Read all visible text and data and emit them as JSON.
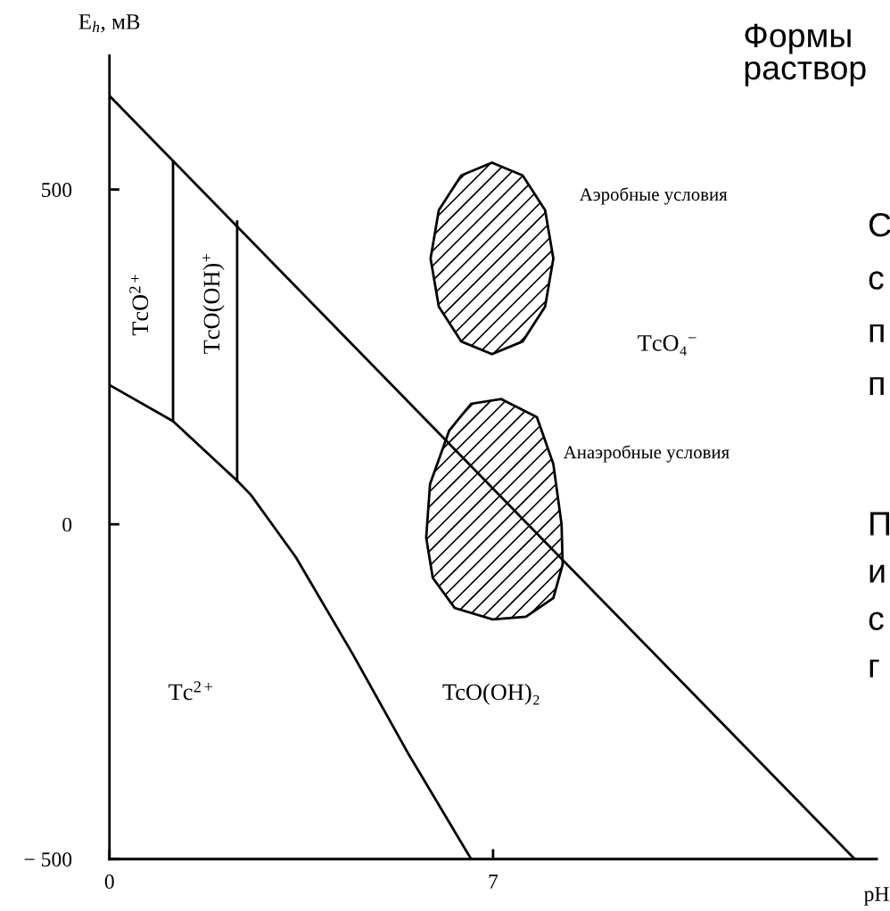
{
  "chart_data": {
    "type": "line",
    "title": "Формы\nраствор",
    "xlabel": "pH",
    "ylabel": "E$_{h}$, мВ",
    "xlim": [
      0,
      14
    ],
    "xticks": [
      0,
      7
    ],
    "ylim": [
      -500,
      700
    ],
    "yticks": [
      {
        "value": -500,
        "label": "− 500"
      },
      0,
      500
    ],
    "grid": false,
    "marker": "none",
    "line_style": "solid",
    "series": [
      {
        "color": "#000000",
        "x": [
          0,
          13.6
        ],
        "values": [
          640,
          -500
        ]
      },
      {
        "color": "#000000",
        "x": [
          0,
          1.16,
          2.33,
          2.58,
          3.4,
          4.44,
          5.47,
          6.6
        ],
        "values": [
          208,
          154,
          65,
          44,
          -49,
          -194,
          -345,
          -500
        ]
      },
      {
        "color": "#000000",
        "x": [
          1.16,
          1.16
        ],
        "values": [
          542,
          154
        ]
      },
      {
        "color": "#000000",
        "x": [
          2.33,
          2.33
        ],
        "values": [
          452,
          65
        ]
      },
      {
        "type": "area",
        "color": "#000000",
        "x": [
          8.1,
          7.95,
          7.54,
          6.98,
          6.42,
          6.01,
          5.86,
          6.01,
          6.42,
          6.98,
          7.54,
          7.95,
          8.1
        ],
        "values": [
          397,
          469,
          521,
          540,
          521,
          469,
          397,
          325,
          273,
          254,
          273,
          325,
          397
        ]
      },
      {
        "type": "area",
        "color": "#000000",
        "x": [
          7.15,
          7.8,
          8.1,
          8.25,
          8.27,
          8.1,
          7.6,
          6.99,
          6.3,
          5.9,
          5.78,
          5.85,
          6.2,
          6.6,
          7.15
        ],
        "values": [
          187,
          160,
          90,
          0,
          -60,
          -110,
          -138,
          -142,
          -125,
          -80,
          -20,
          60,
          140,
          180,
          187
        ]
      }
    ],
    "annotations": [
      "TcO$^{2+}$",
      "TcO(OH)$^{+}$",
      "Tc$^{2+}$",
      "TcO(OH)₂",
      "TcO₄$^{−}$",
      "Аэробные условия",
      "Анаэробные условия",
      "С",
      "с",
      "п",
      "п",
      "П",
      "и",
      "с",
      "г"
    ]
  }
}
